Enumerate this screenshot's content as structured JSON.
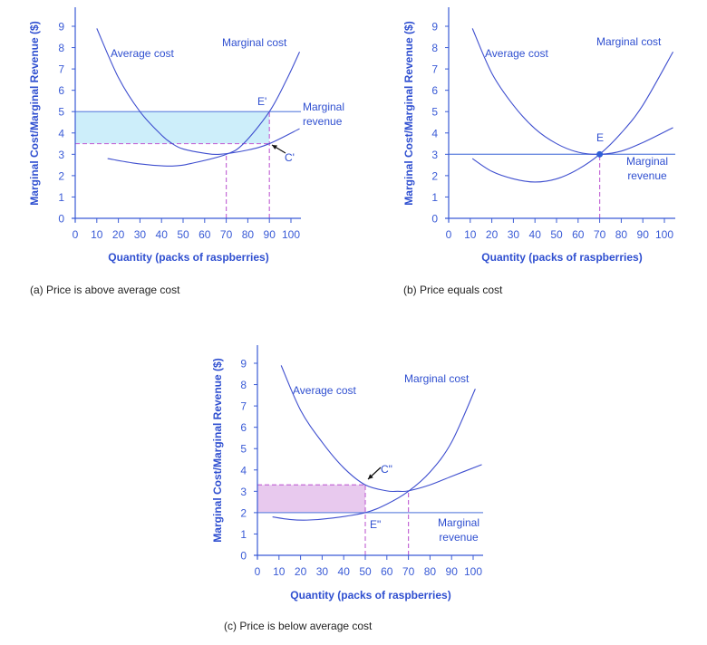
{
  "colors": {
    "axis": "#3a5bd6",
    "curve": "#3f4fcf",
    "mr_line": "#6c8be0",
    "dashed": "#c46ad6",
    "profit_fill": "#cdeefa",
    "loss_fill": "#e8c9ee",
    "point": "#2f5fd8"
  },
  "chart_data": [
    {
      "type": "line",
      "caption": "(a) Price is above average cost",
      "xlabel": "Quantity (packs of raspberries)",
      "ylabel": "Marginal Cost/Marginal Revenue ($)",
      "xlim": [
        0,
        100
      ],
      "ylim": [
        0,
        9
      ],
      "xticks": [
        "0",
        "10",
        "20",
        "30",
        "40",
        "50",
        "60",
        "70",
        "80",
        "90",
        "100"
      ],
      "yticks": [
        "0",
        "1",
        "2",
        "3",
        "4",
        "5",
        "6",
        "7",
        "8",
        "9"
      ],
      "series": [
        {
          "name": "Average cost",
          "points": [
            [
              10,
              8.9
            ],
            [
              20,
              6.6
            ],
            [
              30,
              5.0
            ],
            [
              40,
              3.9
            ],
            [
              45,
              3.5
            ],
            [
              50,
              3.25
            ],
            [
              60,
              3.05
            ],
            [
              67,
              3.0
            ],
            [
              80,
              3.2
            ],
            [
              90,
              3.5
            ],
            [
              104,
              4.2
            ]
          ]
        },
        {
          "name": "Marginal cost",
          "points": [
            [
              15,
              2.8
            ],
            [
              30,
              2.55
            ],
            [
              45,
              2.45
            ],
            [
              55,
              2.6
            ],
            [
              70,
              3.0
            ],
            [
              78,
              3.5
            ],
            [
              90,
              5.0
            ],
            [
              98,
              6.5
            ],
            [
              104,
              7.8
            ]
          ]
        }
      ],
      "marginal_revenue": {
        "name": "Marginal revenue",
        "price": 5
      },
      "shaded_region": {
        "x": [
          0,
          90
        ],
        "y": [
          3.5,
          5
        ],
        "meaning": "profit"
      },
      "dashed_levels": {
        "horizontal": [
          [
            3.5,
            90
          ]
        ],
        "vertical": [
          [
            70,
            3
          ],
          [
            90,
            5
          ]
        ]
      },
      "annotations": [
        {
          "text": "E'",
          "x": 90,
          "y": 5
        },
        {
          "text": "C'",
          "x": 90,
          "y": 3.5
        }
      ]
    },
    {
      "type": "line",
      "caption": "(b) Price equals cost",
      "xlabel": "Quantity (packs of raspberries)",
      "ylabel": "Marginal Cost/Marginal Revenue ($)",
      "xlim": [
        0,
        100
      ],
      "ylim": [
        0,
        9
      ],
      "xticks": [
        "0",
        "10",
        "20",
        "30",
        "40",
        "50",
        "60",
        "70",
        "80",
        "90",
        "100"
      ],
      "yticks": [
        "0",
        "1",
        "2",
        "3",
        "4",
        "5",
        "6",
        "7",
        "8",
        "9"
      ],
      "series": [
        {
          "name": "Average cost",
          "points": [
            [
              11,
              8.9
            ],
            [
              20,
              6.8
            ],
            [
              30,
              5.3
            ],
            [
              40,
              4.2
            ],
            [
              50,
              3.5
            ],
            [
              60,
              3.1
            ],
            [
              70,
              3.0
            ],
            [
              80,
              3.15
            ],
            [
              90,
              3.55
            ],
            [
              104,
              4.25
            ]
          ]
        },
        {
          "name": "Marginal cost",
          "points": [
            [
              11,
              2.8
            ],
            [
              20,
              2.2
            ],
            [
              30,
              1.85
            ],
            [
              40,
              1.7
            ],
            [
              50,
              1.85
            ],
            [
              60,
              2.3
            ],
            [
              70,
              3.0
            ],
            [
              80,
              4.0
            ],
            [
              90,
              5.3
            ],
            [
              104,
              7.8
            ]
          ]
        }
      ],
      "marginal_revenue": {
        "name": "Marginal revenue",
        "price": 3
      },
      "dashed_levels": {
        "horizontal": [],
        "vertical": [
          [
            70,
            3
          ]
        ]
      },
      "point": {
        "label": "E",
        "x": 70,
        "y": 3
      },
      "annotations": [
        {
          "text": "E",
          "x": 70,
          "y": 3
        }
      ]
    },
    {
      "type": "line",
      "caption": "(c) Price is below average cost",
      "xlabel": "Quantity (packs of raspberries)",
      "ylabel": "Marginal Cost/Marginal Revenue ($)",
      "xlim": [
        0,
        100
      ],
      "ylim": [
        0,
        9
      ],
      "xticks": [
        "0",
        "10",
        "20",
        "30",
        "40",
        "50",
        "60",
        "70",
        "80",
        "90",
        "100"
      ],
      "yticks": [
        "0",
        "1",
        "2",
        "3",
        "4",
        "5",
        "6",
        "7",
        "8",
        "9"
      ],
      "series": [
        {
          "name": "Average cost",
          "points": [
            [
              11,
              8.9
            ],
            [
              20,
              6.8
            ],
            [
              30,
              5.3
            ],
            [
              40,
              4.1
            ],
            [
              50,
              3.3
            ],
            [
              60,
              3.02
            ],
            [
              65,
              3.0
            ],
            [
              70,
              3.02
            ],
            [
              80,
              3.3
            ],
            [
              90,
              3.7
            ],
            [
              104,
              4.25
            ]
          ]
        },
        {
          "name": "Marginal cost",
          "points": [
            [
              7,
              1.8
            ],
            [
              15,
              1.68
            ],
            [
              23,
              1.65
            ],
            [
              35,
              1.75
            ],
            [
              50,
              2.0
            ],
            [
              60,
              2.4
            ],
            [
              70,
              3.0
            ],
            [
              80,
              3.9
            ],
            [
              90,
              5.3
            ],
            [
              101,
              7.8
            ]
          ]
        }
      ],
      "marginal_revenue": {
        "name": "Marginal revenue",
        "price": 2
      },
      "shaded_region": {
        "x": [
          0,
          50
        ],
        "y": [
          2,
          3.3
        ],
        "meaning": "loss"
      },
      "dashed_levels": {
        "horizontal": [
          [
            3.3,
            50
          ]
        ],
        "vertical": [
          [
            50,
            3.3
          ],
          [
            70,
            3
          ]
        ]
      },
      "annotations": [
        {
          "text": "C\"",
          "x": 50,
          "y": 3.3
        },
        {
          "text": "E\"",
          "x": 50,
          "y": 2
        }
      ]
    }
  ],
  "labels": {
    "a": {
      "average_cost": "Average cost",
      "marginal_cost": "Marginal cost",
      "mr_line1": "Marginal",
      "mr_line2": "revenue",
      "e": "E'",
      "c": "C'"
    },
    "b": {
      "average_cost": "Average cost",
      "marginal_cost": "Marginal cost",
      "mr_line1": "Marginal",
      "mr_line2": "revenue",
      "e": "E"
    },
    "c": {
      "average_cost": "Average cost",
      "marginal_cost": "Marginal cost",
      "mr_line1": "Marginal",
      "mr_line2": "revenue",
      "e": "E\"",
      "c": "C\""
    }
  }
}
